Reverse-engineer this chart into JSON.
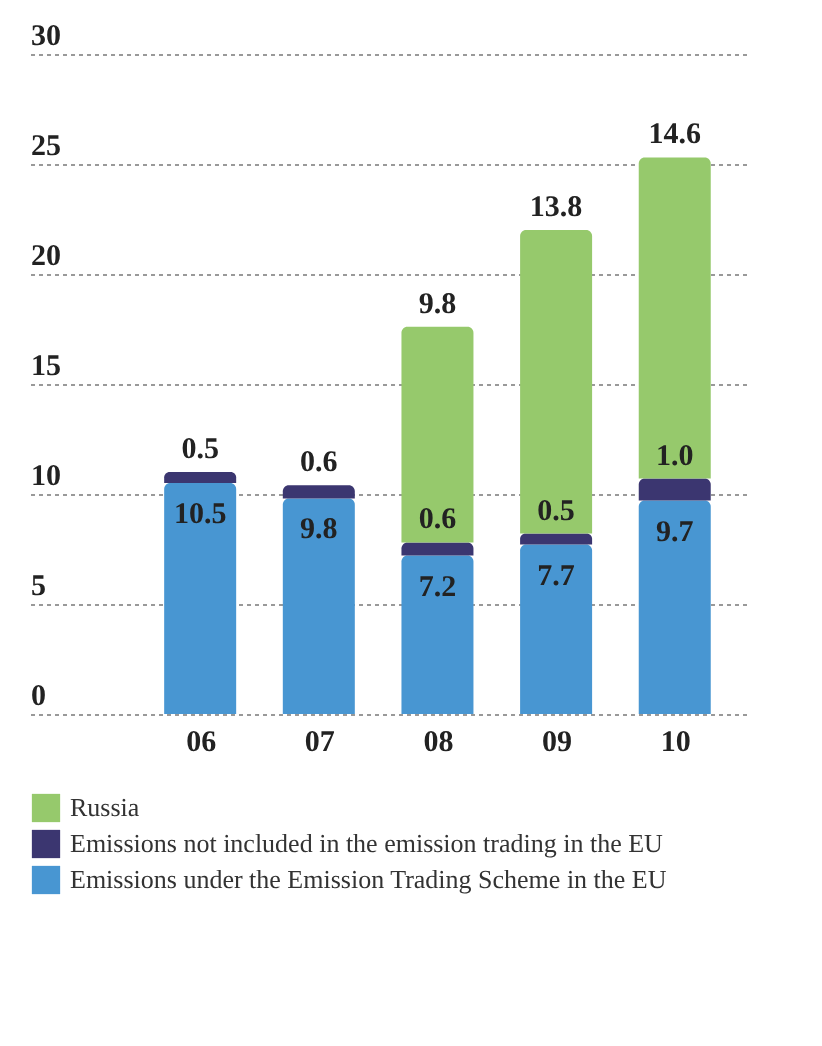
{
  "chart_data": {
    "type": "bar",
    "stacked": true,
    "categories": [
      "06",
      "07",
      "08",
      "09",
      "10"
    ],
    "series": [
      {
        "name": "Emissions under the Emission Trading Scheme in the EU",
        "color": "#4896d2",
        "values": [
          10.5,
          9.8,
          7.2,
          7.7,
          9.7
        ],
        "value_labels": [
          "10.5",
          "9.8",
          "7.2",
          "7.7",
          "9.7"
        ]
      },
      {
        "name": "Emissions not included in the emission trading in the EU",
        "color": "#3b3670",
        "values": [
          0.5,
          0.6,
          0.6,
          0.5,
          1.0
        ],
        "value_labels": [
          "0.5",
          "0.6",
          "0.6",
          "0.5",
          "1.0"
        ]
      },
      {
        "name": "Russia",
        "color": "#96c96c",
        "values": [
          null,
          null,
          9.8,
          13.8,
          14.6
        ],
        "value_labels": [
          null,
          null,
          "9.8",
          "13.8",
          "14.6"
        ]
      }
    ],
    "ylim": [
      0,
      30
    ],
    "yticks": [
      0,
      5,
      10,
      15,
      20,
      25,
      30
    ],
    "grid": "y",
    "legend": "bottom"
  }
}
